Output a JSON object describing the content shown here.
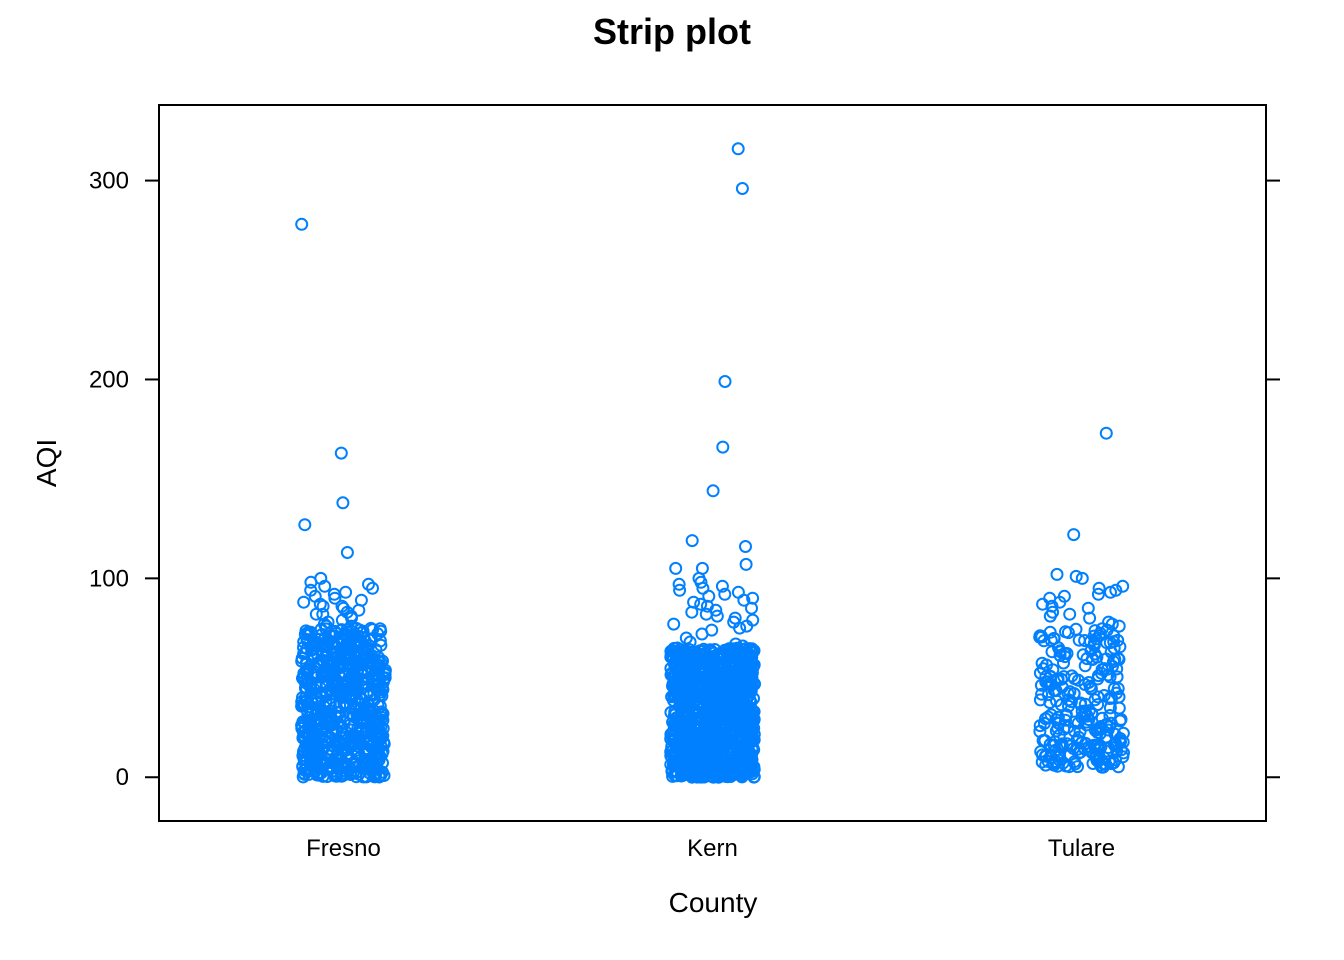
{
  "chart_data": {
    "type": "scatter",
    "subtype": "strip",
    "title": "Strip plot",
    "xlabel": "County",
    "ylabel": "AQI",
    "categories": [
      "Fresno",
      "Kern",
      "Tulare"
    ],
    "ylim": [
      -22,
      338
    ],
    "yticks": [
      0,
      100,
      200,
      300
    ],
    "grid": false,
    "legend": "none",
    "marker": "open-circle",
    "color": "#0080ff",
    "series": [
      {
        "category": "Fresno",
        "bulk_range": [
          0,
          75
        ],
        "bulk_count": 700,
        "values": [
          278,
          163,
          138,
          127,
          113,
          100,
          98,
          97,
          96,
          95,
          94,
          93,
          92,
          91,
          90,
          89,
          88,
          87,
          86,
          86,
          85,
          84,
          83,
          82,
          82,
          81,
          80,
          79,
          78,
          77,
          76,
          76
        ]
      },
      {
        "category": "Kern",
        "bulk_range": [
          0,
          65
        ],
        "bulk_count": 1100,
        "values": [
          316,
          296,
          199,
          166,
          144,
          119,
          116,
          107,
          105,
          105,
          100,
          98,
          97,
          96,
          95,
          94,
          93,
          92,
          91,
          90,
          89,
          88,
          87,
          86,
          85,
          84,
          83,
          82,
          81,
          80,
          79,
          78,
          77,
          76,
          75,
          74,
          72,
          70,
          68,
          67,
          66
        ]
      },
      {
        "category": "Tulare",
        "bulk_range": [
          5,
          75
        ],
        "bulk_count": 260,
        "values": [
          173,
          122,
          102,
          101,
          100,
          96,
          95,
          94,
          93,
          92,
          91,
          90,
          88,
          87,
          86,
          85,
          83,
          82,
          81,
          80,
          78,
          77,
          76
        ]
      }
    ]
  }
}
